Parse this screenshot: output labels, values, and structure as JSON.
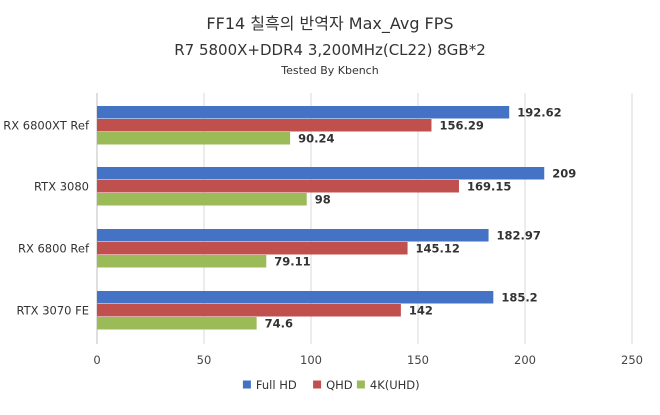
{
  "chart_data": {
    "type": "bar",
    "orientation": "horizontal",
    "title": "FF14 칠흑의 반역자 Max_Avg FPS",
    "subtitle": "R7 5800X+DDR4 3,200MHz(CL22) 8GB*2",
    "credit": "Tested By Kbench",
    "categories": [
      "RX 6800XT Ref",
      "RTX 3080",
      "RX 6800 Ref",
      "RTX 3070 FE"
    ],
    "series": [
      {
        "name": "Full HD",
        "color": "#4472c4",
        "values": [
          192.62,
          209,
          182.97,
          185.2
        ]
      },
      {
        "name": "QHD",
        "color": "#c0504d",
        "values": [
          156.29,
          169.15,
          145.12,
          142
        ]
      },
      {
        "name": "4K(UHD)",
        "color": "#9bbb59",
        "values": [
          90.24,
          98,
          79.11,
          74.6
        ]
      }
    ],
    "xlim": [
      0,
      250
    ],
    "xticks": [
      0,
      50,
      100,
      150,
      200,
      250
    ],
    "grid": true,
    "legend_position": "bottom"
  }
}
